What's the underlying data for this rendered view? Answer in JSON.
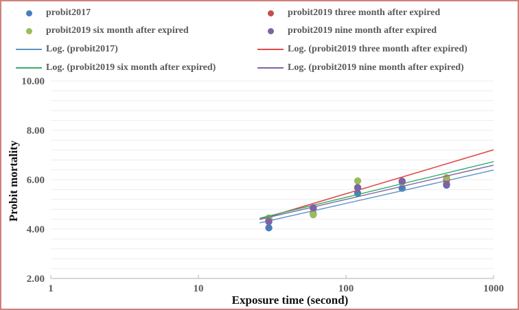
{
  "frame": {
    "border_color": "#cf7f7c",
    "background": "#ffffff"
  },
  "legend": {
    "text_color": "#595959",
    "items": [
      {
        "label": "probit2017",
        "marker": "dot",
        "color": "#4a7ebb",
        "col": 0,
        "row": 0
      },
      {
        "label": "probit2019 three month after expired",
        "marker": "dot",
        "color": "#c2504b",
        "col": 1,
        "row": 0
      },
      {
        "label": "probit2019 six month after expired",
        "marker": "dot",
        "color": "#9bbb59",
        "col": 0,
        "row": 1
      },
      {
        "label": "probit2019 nine month after expired",
        "marker": "dot",
        "color": "#7d62a5",
        "col": 1,
        "row": 1
      },
      {
        "label": "Log. (probit2017)",
        "marker": "line",
        "color": "#5b93c5",
        "col": 0,
        "row": 2
      },
      {
        "label": "Log. (probit2019 three month after expired)",
        "marker": "line",
        "color": "#e04b48",
        "col": 1,
        "row": 2
      },
      {
        "label": "Log. (probit2019 six month after expired)",
        "marker": "line",
        "color": "#2fae6a",
        "col": 0,
        "row": 3
      },
      {
        "label": "Log. (probit2019 nine month after expired)",
        "marker": "line",
        "color": "#7e61a5",
        "col": 1,
        "row": 3
      }
    ]
  },
  "chart_data": {
    "type": "scatter",
    "title": "",
    "xlabel": "Exposure time (second)",
    "ylabel": "Probit mortality",
    "x_scale": "log",
    "xlim": [
      1,
      1000
    ],
    "ylim": [
      2,
      10
    ],
    "x_ticks": [
      1,
      10,
      100,
      1000
    ],
    "x_tick_labels": [
      "1",
      "10",
      "100",
      "1000"
    ],
    "y_ticks": [
      2,
      4,
      6,
      8,
      10
    ],
    "y_tick_labels": [
      "2.00",
      "4.00",
      "6.00",
      "8.00",
      "10.00"
    ],
    "grid": {
      "minor_step": 0.4,
      "color": "#ededed"
    },
    "axis_color": "#bfbfbf",
    "x": [
      30,
      60,
      120,
      240,
      480
    ],
    "series": [
      {
        "name": "probit2017",
        "color": "#4a7ebb",
        "values": [
          4.05,
          4.62,
          5.45,
          5.65,
          5.78
        ]
      },
      {
        "name": "probit2019 three month after expired",
        "color": "#c2504b",
        "values": [
          4.38,
          4.85,
          5.68,
          5.92,
          6.0
        ]
      },
      {
        "name": "probit2019 six month after expired",
        "color": "#9bbb59",
        "values": [
          4.45,
          4.58,
          5.95,
          5.9,
          6.08
        ]
      },
      {
        "name": "probit2019 nine month after expired",
        "color": "#7d62a5",
        "values": [
          4.3,
          4.86,
          5.68,
          5.94,
          5.82
        ]
      }
    ],
    "trendlines": [
      {
        "name": "Log. (probit2017)",
        "color": "#5b93c5",
        "width": 1.4,
        "start": {
          "t": 26,
          "y": 4.25
        },
        "end": {
          "t": 1000,
          "y": 6.39
        }
      },
      {
        "name": "Log. (probit2019 three month after expired)",
        "color": "#e04b48",
        "width": 1.6,
        "start": {
          "t": 26,
          "y": 4.39
        },
        "end": {
          "t": 1000,
          "y": 7.21
        }
      },
      {
        "name": "Log. (probit2019 six month after expired)",
        "color": "#2fae6a",
        "width": 1.4,
        "start": {
          "t": 26,
          "y": 4.44
        },
        "end": {
          "t": 1000,
          "y": 6.73
        }
      },
      {
        "name": "Log. (probit2019 nine month after expired)",
        "color": "#7e61a5",
        "width": 1.4,
        "start": {
          "t": 26,
          "y": 4.39
        },
        "end": {
          "t": 1000,
          "y": 6.59
        }
      }
    ]
  }
}
